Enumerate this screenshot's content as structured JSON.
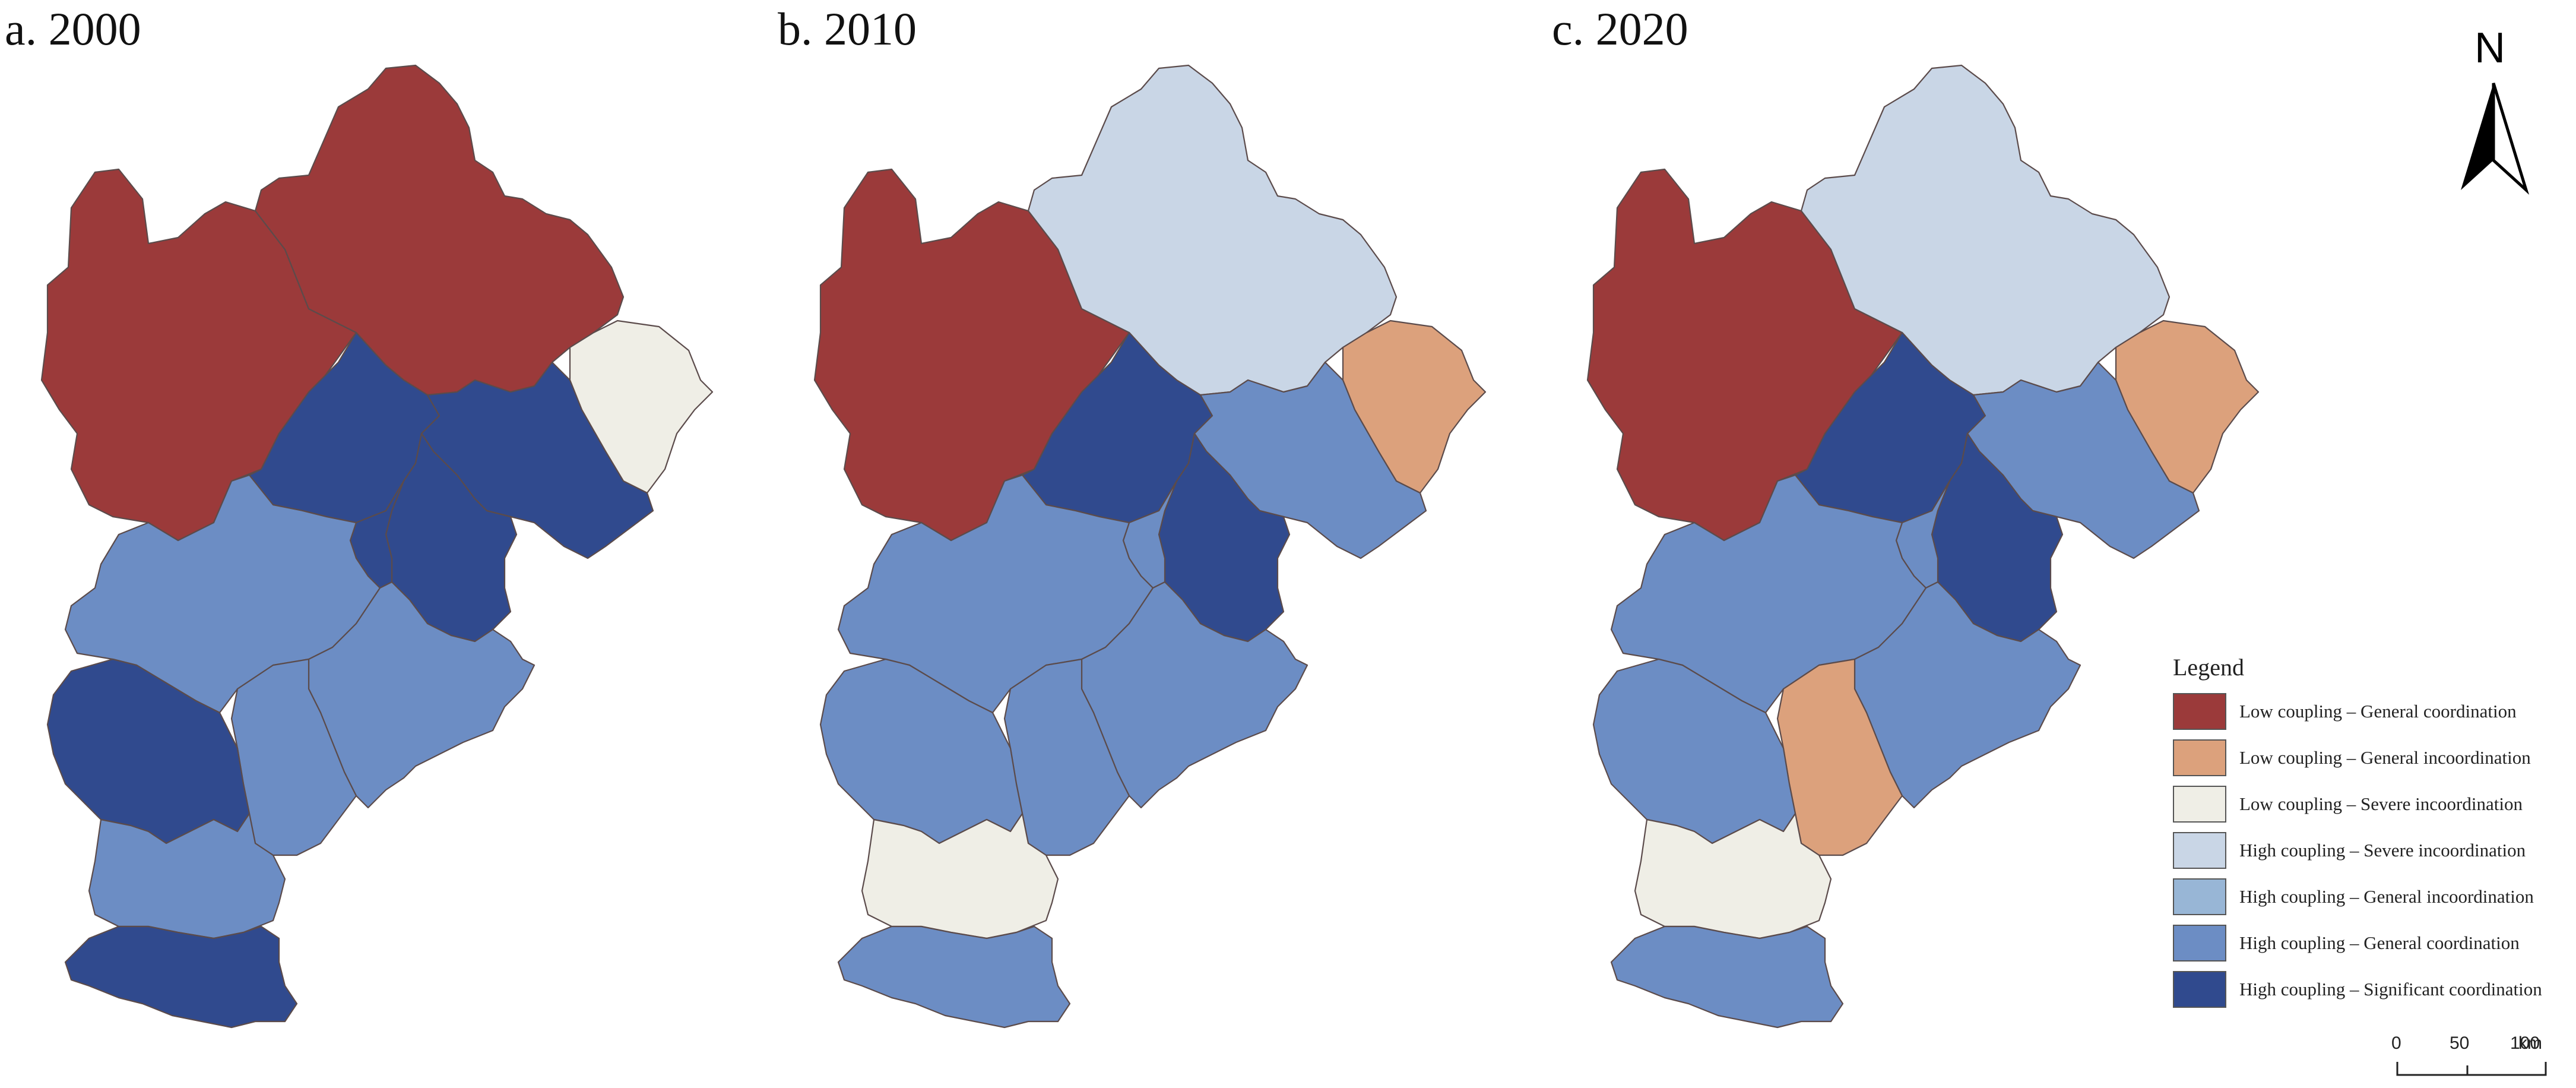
{
  "panels": [
    {
      "id": "a",
      "title": "a. 2000"
    },
    {
      "id": "b",
      "title": "b. 2010"
    },
    {
      "id": "c",
      "title": "c. 2020"
    }
  ],
  "north_arrow": {
    "label": "N"
  },
  "legend": {
    "title": "Legend",
    "items": [
      {
        "key": "lc_gc",
        "label": "Low coupling – General coordination",
        "color": "#9b3a3a"
      },
      {
        "key": "lc_gi",
        "label": "Low coupling – General incoordination",
        "color": "#dca17c"
      },
      {
        "key": "lc_si",
        "label": "Low coupling – Severe incoordination",
        "color": "#efeee6"
      },
      {
        "key": "hc_si",
        "label": "High coupling – Severe incoordination",
        "color": "#c9d6e6"
      },
      {
        "key": "hc_gi",
        "label": "High coupling – General incoordination",
        "color": "#98b6d6"
      },
      {
        "key": "hc_gc",
        "label": "High coupling – General coordination",
        "color": "#6c8dc4"
      },
      {
        "key": "hc_sc",
        "label": "High coupling – Significant coordination",
        "color": "#304a8e"
      }
    ]
  },
  "scale_bar": {
    "ticks": [
      "0",
      "50",
      "100"
    ],
    "unit": "km"
  },
  "region_classes": {
    "a": {
      "west": "lc_gc",
      "chengde": "lc_gc",
      "qinhuangdao": "lc_si",
      "beijing": "hc_sc",
      "tangshan": "hc_sc",
      "tianjin": "hc_sc",
      "langfang": "hc_sc",
      "baoding": "hc_gc",
      "cangzhou": "hc_gc",
      "hengshui": "hc_gc",
      "shijiazhuang": "hc_sc",
      "xingtai": "hc_gc",
      "handan": "hc_sc"
    },
    "b": {
      "west": "lc_gc",
      "chengde": "hc_si",
      "qinhuangdao": "lc_gi",
      "beijing": "hc_sc",
      "tangshan": "hc_gc",
      "tianjin": "hc_sc",
      "langfang": "hc_gc",
      "baoding": "hc_gc",
      "cangzhou": "hc_gc",
      "hengshui": "hc_gc",
      "shijiazhuang": "hc_gc",
      "xingtai": "lc_si",
      "handan": "hc_gc"
    },
    "c": {
      "west": "lc_gc",
      "chengde": "hc_si",
      "qinhuangdao": "lc_gi",
      "beijing": "hc_sc",
      "tangshan": "hc_gc",
      "tianjin": "hc_sc",
      "langfang": "hc_gc",
      "baoding": "hc_gc",
      "cangzhou": "hc_gc",
      "hengshui": "lc_gi",
      "shijiazhuang": "hc_gc",
      "xingtai": "lc_si",
      "handan": "hc_gc"
    }
  }
}
